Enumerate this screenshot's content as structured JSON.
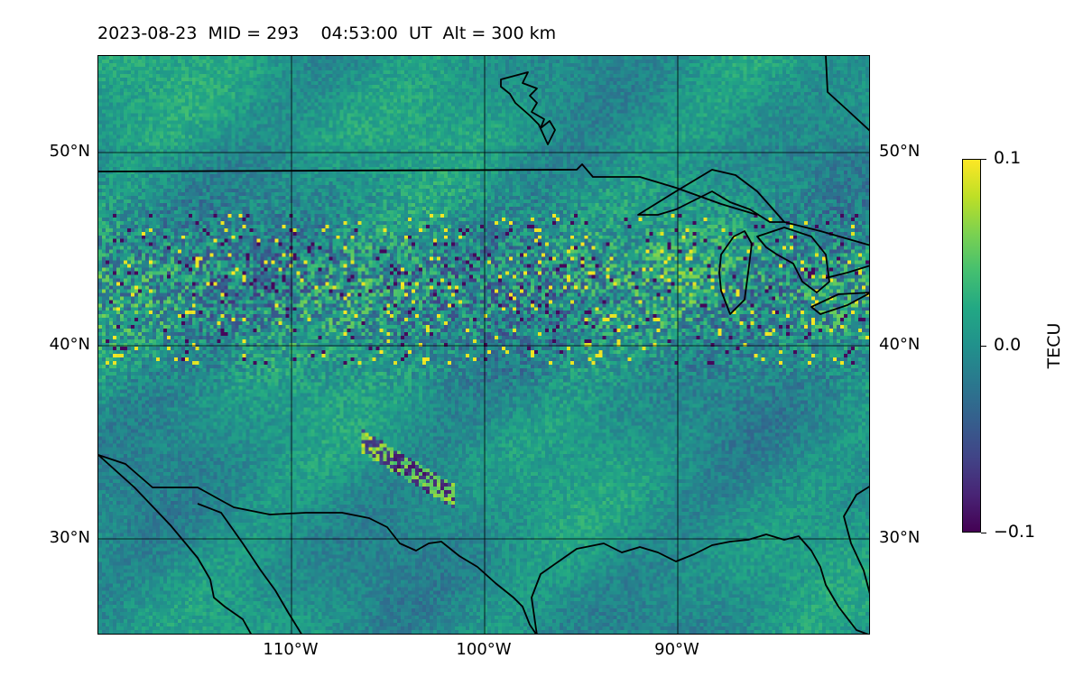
{
  "title": "2023-08-23  MID = 293    04:53:00  UT  Alt = 300 km",
  "map": {
    "lon_range": [
      -120,
      -80
    ],
    "lat_range": [
      25,
      55
    ],
    "gridlines": true,
    "lat_ticks": [
      {
        "value": 30,
        "label": "30°N"
      },
      {
        "value": 40,
        "label": "40°N"
      },
      {
        "value": 50,
        "label": "50°N"
      }
    ],
    "lon_ticks": [
      {
        "value": -110,
        "label": "110°W"
      },
      {
        "value": -100,
        "label": "100°W"
      },
      {
        "value": -90,
        "label": "90°W"
      }
    ],
    "field_colormap": "viridis",
    "features": "coastlines and international borders (USA, Canada, Mexico, Great Lakes)"
  },
  "colorbar": {
    "label": "TECU",
    "min": -0.1,
    "max": 0.1,
    "ticks": [
      {
        "value": 0.1,
        "label": "0.1"
      },
      {
        "value": 0.0,
        "label": "0.0"
      },
      {
        "value": -0.1,
        "label": "−0.1"
      }
    ],
    "colors": [
      "#440154",
      "#482475",
      "#414487",
      "#355f8d",
      "#2a788e",
      "#21918c",
      "#22a884",
      "#44bf70",
      "#7ad151",
      "#bddf26",
      "#fde725"
    ]
  }
}
